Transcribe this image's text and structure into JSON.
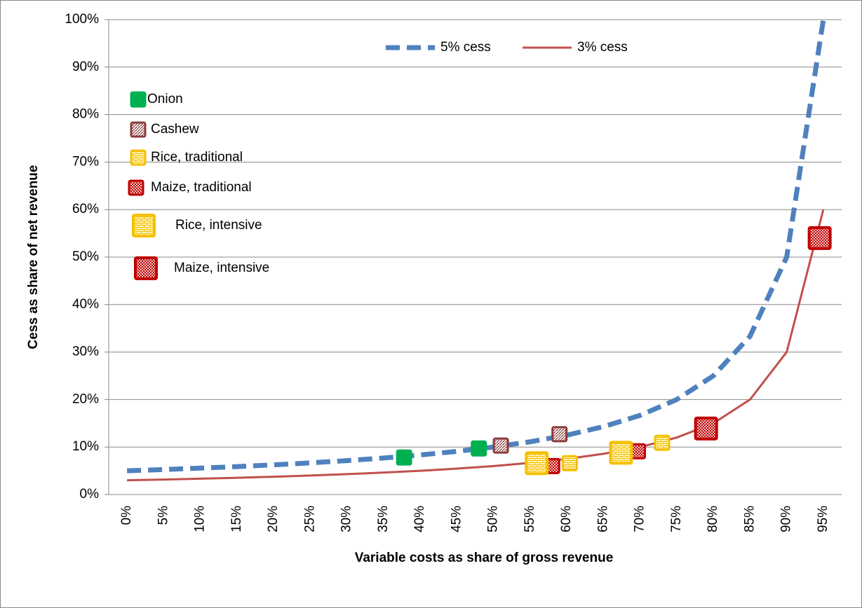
{
  "chart_data": {
    "type": "line",
    "x_label": "Variable costs as share of gross revenue",
    "y_label": "Cess as share of net revenue",
    "x": [
      0,
      5,
      10,
      15,
      20,
      25,
      30,
      35,
      40,
      45,
      50,
      55,
      60,
      65,
      70,
      75,
      80,
      85,
      90,
      95
    ],
    "xlim": [
      -2.5,
      97.5
    ],
    "xticks": [
      {
        "value": 0,
        "label": "0%"
      },
      {
        "value": 5,
        "label": "5%"
      },
      {
        "value": 10,
        "label": "10%"
      },
      {
        "value": 15,
        "label": "15%"
      },
      {
        "value": 20,
        "label": "20%"
      },
      {
        "value": 25,
        "label": "25%"
      },
      {
        "value": 30,
        "label": "30%"
      },
      {
        "value": 35,
        "label": "35%"
      },
      {
        "value": 40,
        "label": "40%"
      },
      {
        "value": 45,
        "label": "45%"
      },
      {
        "value": 50,
        "label": "50%"
      },
      {
        "value": 55,
        "label": "55%"
      },
      {
        "value": 60,
        "label": "60%"
      },
      {
        "value": 65,
        "label": "65%"
      },
      {
        "value": 70,
        "label": "70%"
      },
      {
        "value": 75,
        "label": "75%"
      },
      {
        "value": 80,
        "label": "80%"
      },
      {
        "value": 85,
        "label": "85%"
      },
      {
        "value": 90,
        "label": "90%"
      },
      {
        "value": 95,
        "label": "95%"
      }
    ],
    "ylim": [
      0,
      100
    ],
    "yticks": [
      {
        "value": 0,
        "label": "0%"
      },
      {
        "value": 10,
        "label": "10%"
      },
      {
        "value": 20,
        "label": "20%"
      },
      {
        "value": 30,
        "label": "30%"
      },
      {
        "value": 40,
        "label": "40%"
      },
      {
        "value": 50,
        "label": "50%"
      },
      {
        "value": 60,
        "label": "60%"
      },
      {
        "value": 70,
        "label": "70%"
      },
      {
        "value": 80,
        "label": "80%"
      },
      {
        "value": 90,
        "label": "90%"
      },
      {
        "value": 100,
        "label": "100%"
      }
    ],
    "grid": true,
    "series": [
      {
        "name": "5% cess",
        "color": "#4f81bd",
        "style": "dashed",
        "values": [
          5,
          5.26,
          5.56,
          5.88,
          6.25,
          6.67,
          7.14,
          7.69,
          8.33,
          9.09,
          10,
          11.11,
          12.5,
          14.29,
          16.67,
          20,
          25,
          33.33,
          50,
          100
        ]
      },
      {
        "name": "3% cess",
        "color": "#c0504d",
        "style": "solid",
        "values": [
          3,
          3.16,
          3.33,
          3.53,
          3.75,
          4,
          4.29,
          4.62,
          5,
          5.45,
          6,
          6.67,
          7.5,
          8.57,
          10,
          12,
          15,
          20,
          30,
          60
        ]
      },
      {
        "name": "Onion",
        "color": "#00b050",
        "pattern": "solid",
        "marker": "small",
        "x": [
          37.8,
          48
        ],
        "values": [
          7.8,
          9.7
        ]
      },
      {
        "name": "Cashew",
        "color": "#8b3a3a",
        "pattern": "diagonal",
        "marker": "small",
        "x": [
          51,
          59
        ],
        "values": [
          10.3,
          12.7
        ]
      },
      {
        "name": "Rice, traditional",
        "color": "#f5c000",
        "pattern": "brick",
        "marker": "small",
        "x": [
          60.4,
          73
        ],
        "values": [
          6.6,
          10.9
        ]
      },
      {
        "name": "Maize, traditional",
        "color": "#c00000",
        "pattern": "checker",
        "marker": "small",
        "x": [
          58,
          69.7
        ],
        "values": [
          6,
          9.1
        ]
      },
      {
        "name": "Rice, intensive",
        "color": "#f5c000",
        "pattern": "brick",
        "marker": "large",
        "x": [
          55.9,
          67.4
        ],
        "values": [
          6.6,
          8.8
        ]
      },
      {
        "name": "Maize, intensive",
        "color": "#c00000",
        "pattern": "checker",
        "marker": "large",
        "x": [
          79,
          94.5
        ],
        "values": [
          13.9,
          54
        ]
      }
    ]
  }
}
